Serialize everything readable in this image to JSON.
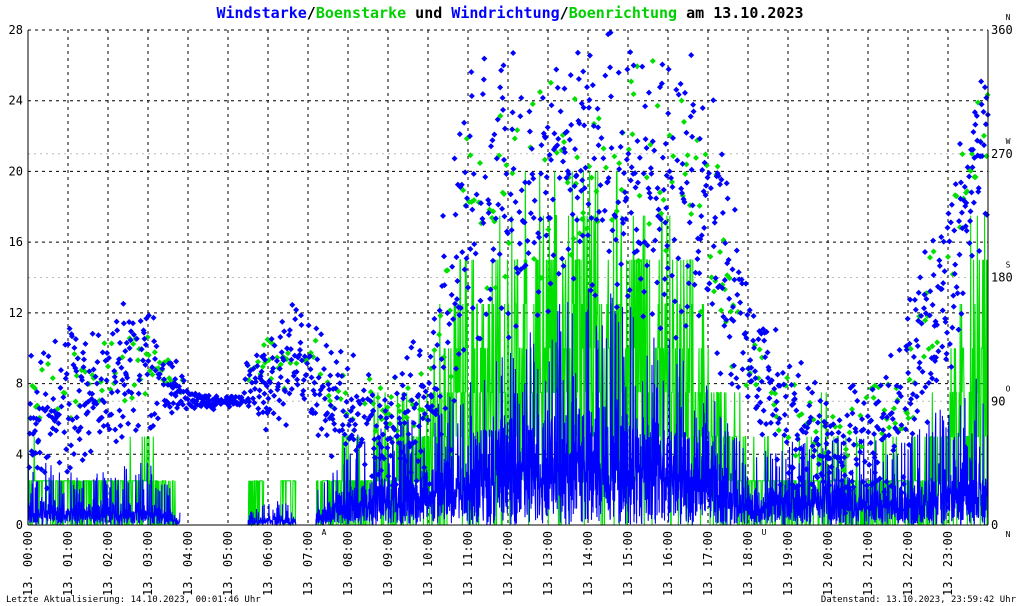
{
  "title": {
    "part1": "Windstarke",
    "sep1": "/",
    "part2": "Boenstarke",
    "part3": " und ",
    "part4": "Windrichtung",
    "sep2": "/",
    "part5": "Boenrichtung",
    "part6": " am 13.10.2023"
  },
  "colors": {
    "wind": "#0000ff",
    "gust": "#00e000",
    "grid": "#000000",
    "marker": "#ff0000",
    "text": "#000000"
  },
  "footer": {
    "left": "Letzte Aktualisierung: 14.10.2023, 00:01:46 Uhr",
    "right": "Datenstand: 13.10.2023, 23:59:42 Uhr"
  },
  "chart_data": {
    "type": "line",
    "x_unit": "hour of day",
    "xlim": [
      0,
      24
    ],
    "y_left": {
      "label": "Windstarke / Boenstarke",
      "ylim": [
        0,
        28
      ],
      "ticks": [
        "0",
        "4",
        "8",
        "12",
        "16",
        "20",
        "24",
        "28"
      ]
    },
    "y_right": {
      "label": "Windrichtung / Boenrichtung",
      "ylim": [
        0,
        360
      ],
      "ticks": [
        "0",
        "90",
        "180",
        "270",
        "360"
      ],
      "compass": [
        "N",
        "O",
        "S",
        "W",
        "N"
      ]
    },
    "x_ticks": [
      "13. 00:00",
      "13. 01:00",
      "13. 02:00",
      "13. 03:00",
      "13. 04:00",
      "13. 05:00",
      "13. 06:00",
      "13. 07:00",
      "13. 08:00",
      "13. 09:00",
      "13. 10:00",
      "13. 11:00",
      "13. 12:00",
      "13. 13:00",
      "13. 14:00",
      "13. 15:00",
      "13. 16:00",
      "13. 17:00",
      "13. 18:00",
      "13. 19:00",
      "13. 20:00",
      "13. 21:00",
      "13. 22:00",
      "13. 23:00"
    ],
    "markers": [
      {
        "label": "A",
        "hour": 7.4
      },
      {
        "label": "U",
        "hour": 18.4
      }
    ],
    "series": [
      {
        "name": "Windstarke",
        "kind": "line",
        "axis": "left",
        "color": "#0000ff",
        "profile_hours": [
          0,
          1,
          2,
          3,
          4,
          5,
          6,
          7,
          8,
          9,
          10,
          11,
          12,
          13,
          14,
          15,
          16,
          17,
          18,
          19,
          20,
          21,
          22,
          23,
          24
        ],
        "typical": [
          1.0,
          0.8,
          0.8,
          0.9,
          0.1,
          0.0,
          0.4,
          0.2,
          1.5,
          1.8,
          2.2,
          3.5,
          4.0,
          4.5,
          4.8,
          4.5,
          4.0,
          3.2,
          1.2,
          1.6,
          1.8,
          1.5,
          1.5,
          2.2,
          3.0
        ],
        "peak": [
          5.0,
          3.0,
          3.0,
          4.0,
          0.5,
          0.0,
          1.5,
          1.0,
          5.0,
          6.0,
          7.0,
          9.0,
          10.0,
          12.0,
          14.0,
          13.0,
          11.0,
          8.0,
          4.0,
          5.0,
          5.0,
          5.0,
          5.0,
          7.0,
          9.0
        ]
      },
      {
        "name": "Boenstarke",
        "kind": "line",
        "axis": "left",
        "color": "#00e000",
        "profile_hours": [
          0,
          1,
          2,
          3,
          4,
          5,
          6,
          7,
          8,
          9,
          10,
          11,
          12,
          13,
          14,
          15,
          16,
          17,
          18,
          19,
          20,
          21,
          22,
          23,
          24
        ],
        "typical": [
          2.5,
          2.5,
          2.5,
          2.5,
          0.0,
          0.0,
          2.5,
          2.5,
          2.5,
          2.5,
          5.0,
          10.0,
          10.0,
          12.0,
          14.0,
          13.0,
          10.0,
          7.5,
          2.5,
          2.5,
          2.5,
          2.5,
          2.5,
          5.0,
          12.0
        ],
        "peak": [
          5.0,
          2.5,
          2.5,
          5.0,
          0.0,
          0.0,
          2.5,
          2.5,
          5.0,
          7.5,
          10.0,
          17.5,
          20.0,
          20.0,
          21.0,
          20.0,
          17.5,
          15.0,
          5.0,
          7.5,
          7.5,
          5.0,
          5.0,
          12.0,
          20.0
        ]
      },
      {
        "name": "Windrichtung",
        "kind": "scatter",
        "axis": "right",
        "color": "#0000ff",
        "profile_hours": [
          0,
          1,
          2,
          3,
          4,
          5,
          6,
          7,
          8,
          9,
          10,
          11,
          12,
          13,
          14,
          15,
          16,
          17,
          18,
          19,
          20,
          21,
          22,
          23,
          24
        ],
        "center": [
          70,
          90,
          100,
          120,
          90,
          90,
          110,
          120,
          80,
          70,
          80,
          220,
          240,
          250,
          260,
          250,
          250,
          220,
          120,
          80,
          50,
          60,
          90,
          180,
          290
        ],
        "spread": [
          70,
          60,
          60,
          60,
          10,
          5,
          50,
          50,
          50,
          50,
          80,
          140,
          120,
          120,
          110,
          110,
          120,
          130,
          60,
          60,
          50,
          60,
          80,
          100,
          70
        ]
      },
      {
        "name": "Boenrichtung",
        "kind": "scatter",
        "axis": "right",
        "color": "#00e000",
        "profile_hours": [
          0,
          1,
          2,
          3,
          4,
          5,
          6,
          7,
          8,
          9,
          10,
          11,
          12,
          13,
          14,
          15,
          16,
          17,
          18,
          19,
          20,
          21,
          22,
          23,
          24
        ],
        "center": [
          80,
          100,
          110,
          120,
          100,
          90,
          120,
          130,
          80,
          80,
          90,
          230,
          250,
          260,
          270,
          260,
          260,
          230,
          120,
          80,
          60,
          70,
          100,
          200,
          300
        ],
        "spread": [
          40,
          30,
          30,
          30,
          5,
          5,
          30,
          30,
          30,
          30,
          50,
          100,
          90,
          90,
          90,
          90,
          90,
          90,
          30,
          30,
          30,
          30,
          40,
          60,
          40
        ]
      }
    ]
  }
}
